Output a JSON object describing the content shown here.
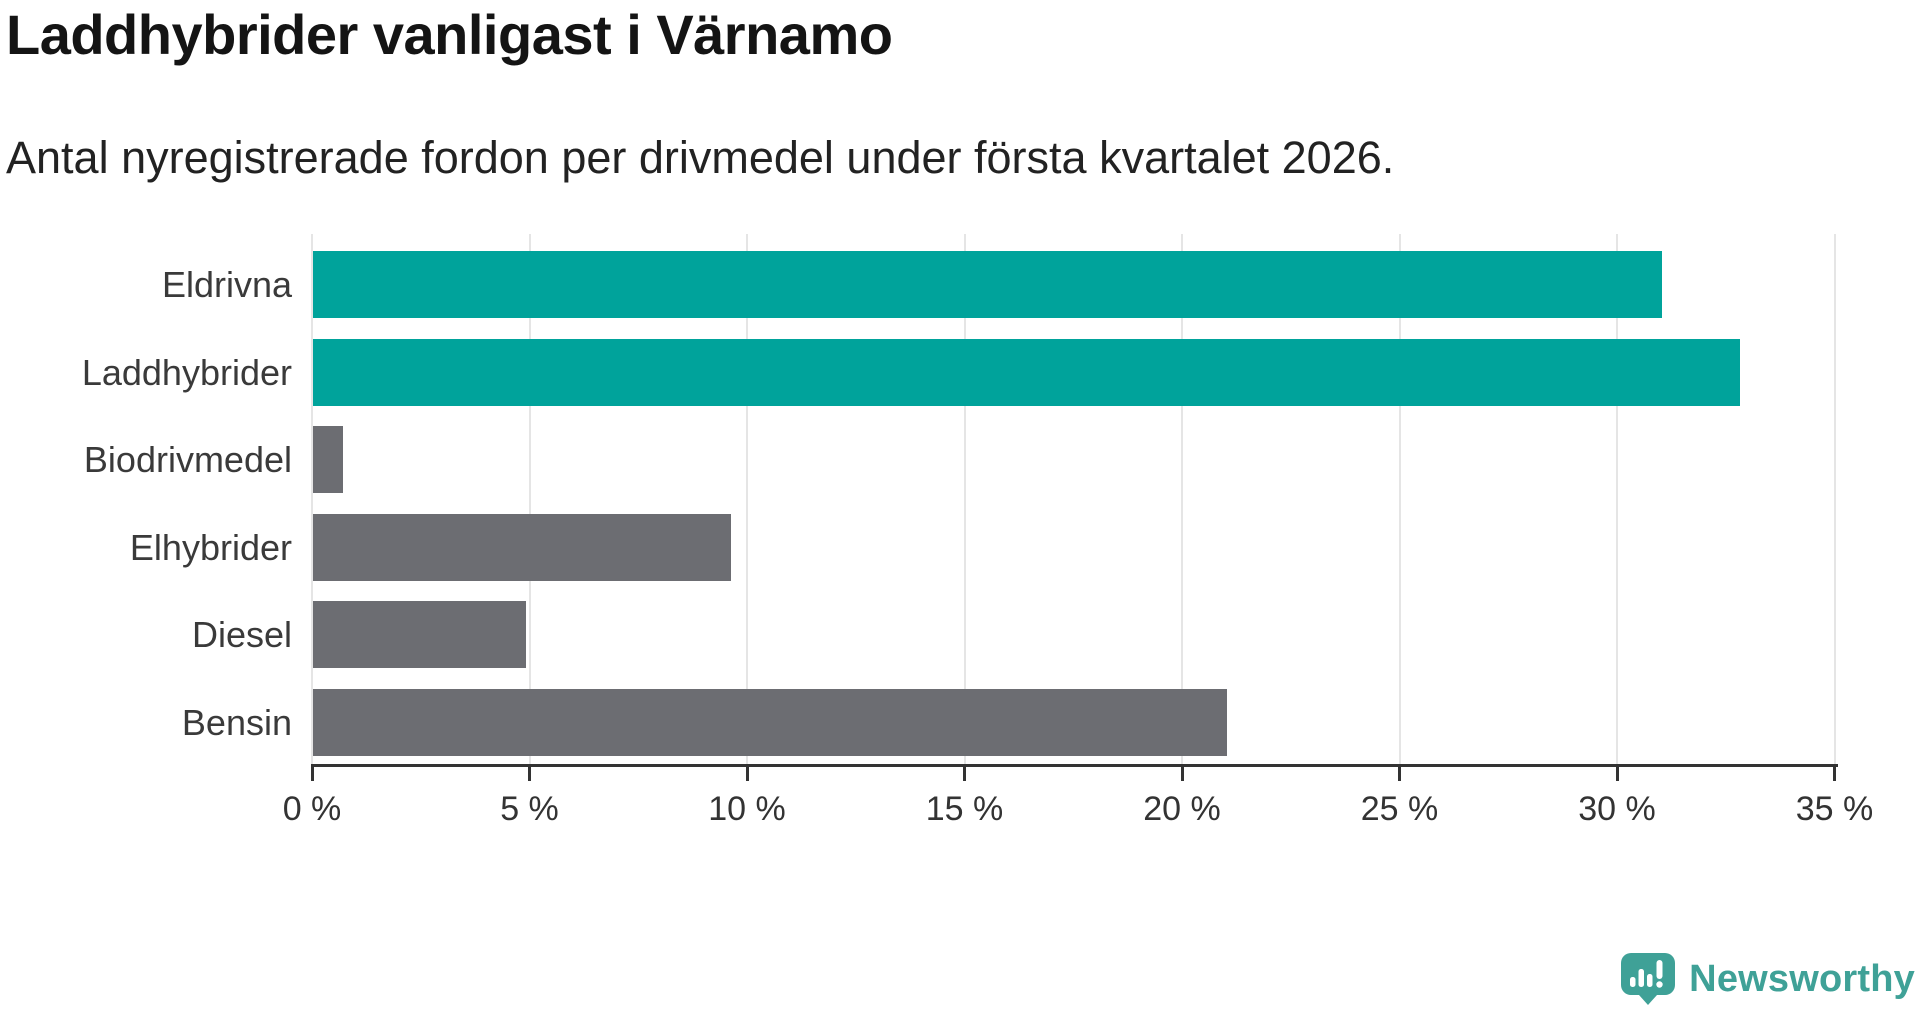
{
  "title": "Laddhybrider vanligast i Värnamo",
  "subtitle": "Antal nyregistrerade fordon per drivmedel under första kvartalet 2026.",
  "branding": {
    "logo_text": "Newsworthy",
    "logo_icon": "newsworthy-speech-bubble-bar-chart-icon",
    "brand_color": "#3fa197"
  },
  "colors": {
    "highlight_bar": "#00a39b",
    "default_bar": "#6c6d72",
    "gridline": "#e5e5e5",
    "axis": "#333333",
    "title_text": "#141414",
    "subtitle_text": "#222222",
    "category_label_text": "#3a3a3a",
    "tick_label_text": "#333333",
    "background": "#ffffff"
  },
  "chart_data": {
    "type": "bar",
    "orientation": "horizontal",
    "title": "Laddhybrider vanligast i Värnamo",
    "subtitle": "Antal nyregistrerade fordon per drivmedel under första kvartalet 2026.",
    "categories": [
      "Eldrivna",
      "Laddhybrider",
      "Biodrivmedel",
      "Elhybrider",
      "Diesel",
      "Bensin"
    ],
    "values": [
      31.0,
      32.8,
      0.7,
      9.6,
      4.9,
      21.0
    ],
    "unit": "%",
    "highlighted_categories": [
      "Eldrivna",
      "Laddhybrider"
    ],
    "bar_colors": [
      "#00a39b",
      "#00a39b",
      "#6c6d72",
      "#6c6d72",
      "#6c6d72",
      "#6c6d72"
    ],
    "x_axis": {
      "min": 0,
      "max": 35,
      "ticks": [
        0,
        5,
        10,
        15,
        20,
        25,
        30,
        35
      ],
      "tick_labels": [
        "0 %",
        "5 %",
        "10 %",
        "15 %",
        "20 %",
        "25 %",
        "30 %",
        "35 %"
      ]
    },
    "grid": true,
    "legend": false
  }
}
